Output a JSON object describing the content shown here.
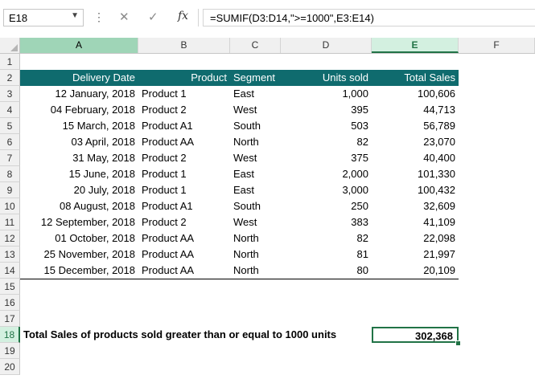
{
  "name_box": "E18",
  "formula": "=SUMIF(D3:D14,\">=1000\",E3:E14)",
  "icons": {
    "cancel": "×-icon",
    "enter": "check-icon",
    "function": "fx-icon"
  },
  "columns": [
    "A",
    "B",
    "C",
    "D",
    "E",
    "F"
  ],
  "rows": [
    "1",
    "2",
    "3",
    "4",
    "5",
    "6",
    "7",
    "8",
    "9",
    "10",
    "11",
    "12",
    "13",
    "14",
    "15",
    "16",
    "17",
    "18",
    "19",
    "20"
  ],
  "table": {
    "headers": [
      "Delivery Date",
      "Product",
      "Segment",
      "Units sold",
      "Total Sales"
    ],
    "rows": [
      [
        "12 January, 2018",
        "Product 1",
        "East",
        "1,000",
        "100,606"
      ],
      [
        "04 February, 2018",
        "Product 2",
        "West",
        "395",
        "44,713"
      ],
      [
        "15 March, 2018",
        "Product A1",
        "South",
        "503",
        "56,789"
      ],
      [
        "03 April, 2018",
        "Product AA",
        "North",
        "82",
        "23,070"
      ],
      [
        "31 May, 2018",
        "Product 2",
        "West",
        "375",
        "40,400"
      ],
      [
        "15 June, 2018",
        "Product 1",
        "East",
        "2,000",
        "101,330"
      ],
      [
        "20 July, 2018",
        "Product 1",
        "East",
        "3,000",
        "100,432"
      ],
      [
        "08 August, 2018",
        "Product A1",
        "South",
        "250",
        "32,609"
      ],
      [
        "12 September, 2018",
        "Product 2",
        "West",
        "383",
        "41,109"
      ],
      [
        "01 October, 2018",
        "Product AA",
        "North",
        "82",
        "22,098"
      ],
      [
        "25 November, 2018",
        "Product AA",
        "North",
        "81",
        "21,997"
      ],
      [
        "15 December, 2018",
        "Product AA",
        "North",
        "80",
        "20,109"
      ]
    ]
  },
  "total": {
    "label": "Total Sales of products sold greater than or equal to 1000 units",
    "value": "302,368"
  },
  "colors": {
    "header_fill": "#0f6b6e",
    "selection": "#217346"
  }
}
